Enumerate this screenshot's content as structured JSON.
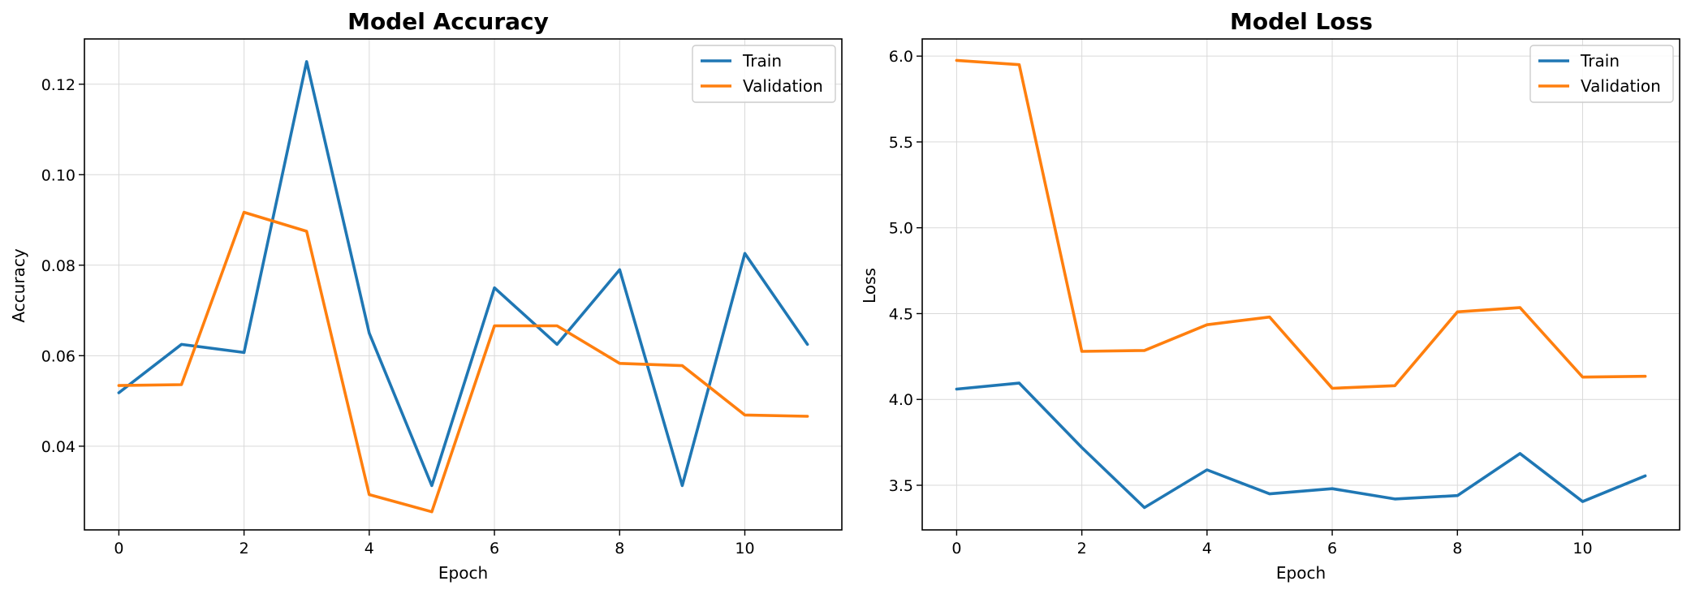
{
  "chart_data": [
    {
      "type": "line",
      "title": "Model Accuracy",
      "xlabel": "Epoch",
      "ylabel": "Accuracy",
      "xlim": [
        -0.55,
        11.55
      ],
      "ylim": [
        0.0215,
        0.13
      ],
      "xticks": [
        0,
        2,
        4,
        6,
        8,
        10
      ],
      "xtick_labels": [
        "0",
        "2",
        "4",
        "6",
        "8",
        "10"
      ],
      "yticks": [
        0.04,
        0.06,
        0.08,
        0.1,
        0.12
      ],
      "ytick_labels": [
        "0.04",
        "0.06",
        "0.08",
        "0.10",
        "0.12"
      ],
      "grid": true,
      "legend_position": "top-right",
      "x": [
        0,
        1,
        2,
        3,
        4,
        5,
        6,
        7,
        8,
        9,
        10,
        11
      ],
      "series": [
        {
          "name": "Train",
          "color": "#1f77b4",
          "values": [
            0.0518,
            0.0625,
            0.0607,
            0.125,
            0.065,
            0.0313,
            0.075,
            0.0625,
            0.079,
            0.0313,
            0.0826,
            0.0625
          ]
        },
        {
          "name": "Validation",
          "color": "#ff7f0e",
          "values": [
            0.0534,
            0.0536,
            0.0917,
            0.0875,
            0.0293,
            0.0255,
            0.0666,
            0.0666,
            0.0583,
            0.0578,
            0.0469,
            0.0466
          ]
        }
      ]
    },
    {
      "type": "line",
      "title": "Model Loss",
      "xlabel": "Epoch",
      "ylabel": "Loss",
      "xlim": [
        -0.55,
        11.55
      ],
      "ylim": [
        3.24,
        6.1
      ],
      "xticks": [
        0,
        2,
        4,
        6,
        8,
        10
      ],
      "xtick_labels": [
        "0",
        "2",
        "4",
        "6",
        "8",
        "10"
      ],
      "yticks": [
        3.5,
        4.0,
        4.5,
        5.0,
        5.5,
        6.0
      ],
      "ytick_labels": [
        "3.5",
        "4.0",
        "4.5",
        "5.0",
        "5.5",
        "6.0"
      ],
      "grid": true,
      "legend_position": "top-right",
      "x": [
        0,
        1,
        2,
        3,
        4,
        5,
        6,
        7,
        8,
        9,
        10,
        11
      ],
      "series": [
        {
          "name": "Train",
          "color": "#1f77b4",
          "values": [
            4.06,
            4.095,
            3.72,
            3.37,
            3.59,
            3.45,
            3.48,
            3.42,
            3.44,
            3.685,
            3.405,
            3.555
          ]
        },
        {
          "name": "Validation",
          "color": "#ff7f0e",
          "values": [
            5.975,
            5.95,
            4.28,
            4.285,
            4.435,
            4.48,
            4.065,
            4.08,
            4.51,
            4.535,
            4.13,
            4.135
          ]
        }
      ]
    }
  ]
}
